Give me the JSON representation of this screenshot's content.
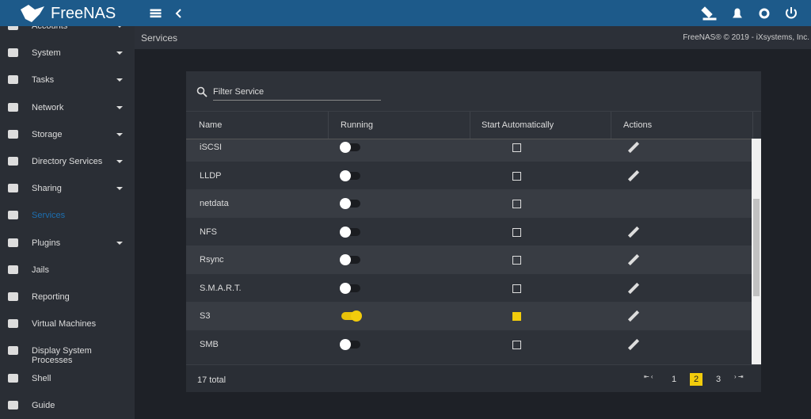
{
  "header": {
    "brand": "FreeNAS"
  },
  "sidebar": {
    "items": [
      {
        "label": "Accounts",
        "submenu": true,
        "active": false
      },
      {
        "label": "System",
        "submenu": true,
        "active": false
      },
      {
        "label": "Tasks",
        "submenu": true,
        "active": false
      },
      {
        "label": "Network",
        "submenu": true,
        "active": false
      },
      {
        "label": "Storage",
        "submenu": true,
        "active": false
      },
      {
        "label": "Directory Services",
        "submenu": true,
        "active": false
      },
      {
        "label": "Sharing",
        "submenu": true,
        "active": false
      },
      {
        "label": "Services",
        "submenu": false,
        "active": true
      },
      {
        "label": "Plugins",
        "submenu": true,
        "active": false
      },
      {
        "label": "Jails",
        "submenu": false,
        "active": false
      },
      {
        "label": "Reporting",
        "submenu": false,
        "active": false
      },
      {
        "label": "Virtual Machines",
        "submenu": false,
        "active": false
      },
      {
        "label": "Display System Processes",
        "submenu": false,
        "active": false
      },
      {
        "label": "Shell",
        "submenu": false,
        "active": false
      },
      {
        "label": "Guide",
        "submenu": false,
        "active": false
      }
    ]
  },
  "breadcrumb": {
    "page": "Services",
    "copyright": "FreeNAS® © 2019 - iXsystems, Inc."
  },
  "table": {
    "filter_placeholder": "Filter Service",
    "columns": [
      "Name",
      "Running",
      "Start Automatically",
      "Actions"
    ],
    "rows": [
      {
        "name": "iSCSI",
        "running": false,
        "start_auto": false,
        "editable": true
      },
      {
        "name": "LLDP",
        "running": false,
        "start_auto": false,
        "editable": true
      },
      {
        "name": "netdata",
        "running": false,
        "start_auto": false,
        "editable": false
      },
      {
        "name": "NFS",
        "running": false,
        "start_auto": false,
        "editable": true
      },
      {
        "name": "Rsync",
        "running": false,
        "start_auto": false,
        "editable": true
      },
      {
        "name": "S.M.A.R.T.",
        "running": false,
        "start_auto": false,
        "editable": true
      },
      {
        "name": "S3",
        "running": true,
        "start_auto": true,
        "editable": true
      },
      {
        "name": "SMB",
        "running": false,
        "start_auto": false,
        "editable": true
      }
    ],
    "total": "17 total",
    "pagination": {
      "pages": [
        1,
        2,
        3
      ],
      "current": 2
    }
  }
}
